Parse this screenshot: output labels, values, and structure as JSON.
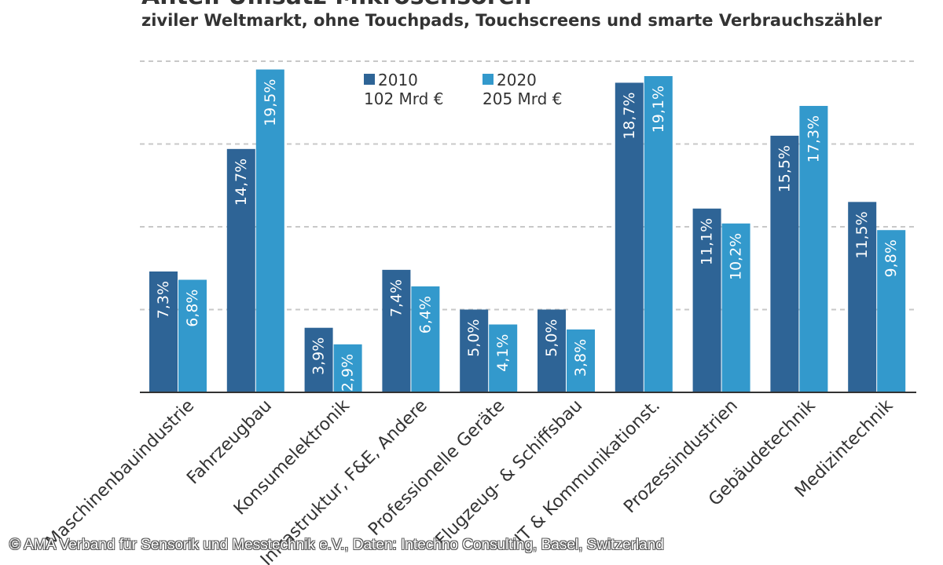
{
  "title": "Anteil Umsatz Mikrosensoren",
  "subtitle": "ziviler Weltmarkt, ohne Touchpads, Touchscreens und smarte Verbrauchszähler",
  "credit": "© AMA Verband für Sensorik und Messtechnik e.V., Daten: Intechno Consulting, Basel, Switzerland",
  "colors": {
    "s2010": "#2e6496",
    "s2020": "#3399cc",
    "grid": "#c8c8c8",
    "axis": "#333333",
    "text": "#333333"
  },
  "chart_data": {
    "type": "bar",
    "title": "Anteil Umsatz Mikrosensoren",
    "subtitle": "ziviler Weltmarkt, ohne Touchpads, Touchscreens und smarte Verbrauchszähler",
    "categories": [
      "Maschinenbauindustrie",
      "Fahrzeugbau",
      "Konsumelektronik",
      "Infrastruktur, F&E, Andere",
      "Professionelle Geräte",
      "Flugzeug- & Schiffsbau",
      "IT & Kommunikationst.",
      "Prozessindustrien",
      "Gebäudetechnik",
      "Medizintechnik"
    ],
    "series": [
      {
        "name": "2010",
        "total": "102 Mrd €",
        "values": [
          7.3,
          14.7,
          3.9,
          7.4,
          5.0,
          5.0,
          18.7,
          11.1,
          15.5,
          11.5
        ],
        "labels": [
          "7,3%",
          "14,7%",
          "3,9%",
          "7,4%",
          "5,0%",
          "5,0%",
          "18,7%",
          "11,1%",
          "15,5%",
          "11,5%"
        ]
      },
      {
        "name": "2020",
        "total": "205 Mrd €",
        "values": [
          6.8,
          19.5,
          2.9,
          6.4,
          4.1,
          3.8,
          19.1,
          10.2,
          17.3,
          9.8
        ],
        "labels": [
          "6,8%",
          "19,5%",
          "2,9%",
          "6,4%",
          "4,1%",
          "3,8%",
          "19,1%",
          "10,2%",
          "17,3%",
          "9,8%"
        ]
      }
    ],
    "ylim": [
      0,
      20
    ],
    "grid": true,
    "grid_values": [
      5,
      10,
      15,
      20
    ],
    "legend_position": "top-center"
  }
}
